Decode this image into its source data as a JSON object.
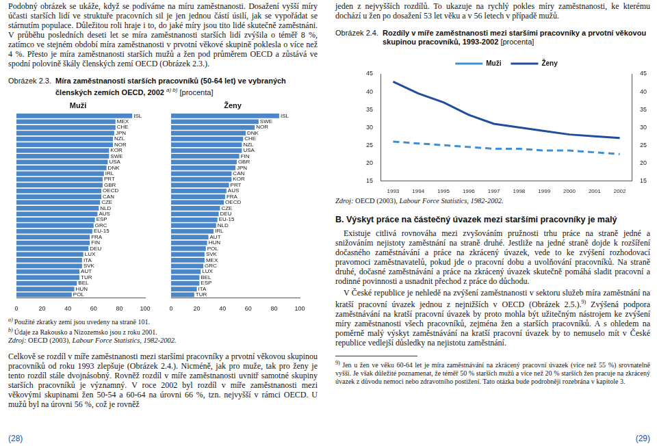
{
  "document": {
    "left": {
      "paragraph_1": "Podobný obrázek se ukáže, když se podíváme na míru zaměstnanosti. Dosažení vyšší míry účasti starších lidí ve struktuře pracovních sil je jen jednou částí úsilí, jak se vypořádat se stárnutím populace. Důležitou roli hraje i to, do jaké míry jsou tito lidé skutečně zaměstnáni. V průběhu posledních deseti let se míra zaměstnanosti starších lidí zvýšila o téměř 8 %, zatímco ve stejném období míra zaměstnanosti v prvotní věkové skupině poklesla o více než 4 %. Přesto je míra zaměstnanosti starších mužů a žen pod průměrem OECD a zůstává ve spodní polovině škály členských zemí OECD (Obrázek 2.3.).",
      "figure": {
        "label": "Obrázek 2.3.",
        "title": "Míra zaměstnanosti starších pracovníků (50-64 let) ve vybraných členských zemích OECD, 2002",
        "title_note": "a) b)",
        "unit": "[procenta]"
      },
      "notes": [
        {
          "mark": "a)",
          "text": "Použité zkratky zemí jsou uvedeny na straně 101."
        },
        {
          "mark": "b)",
          "text": "Údaje za Rakousko a Nizozemsko jsou z roku 2001."
        }
      ],
      "source": {
        "label": "Zdroj:",
        "text": "OECD (2003),",
        "italic": "Labour Force Statistics, 1982-2002."
      },
      "paragraph_2": "Celkově se rozdíl v míře zaměstnanosti mezi staršími pracovníky a prvotní věkovou skupinou pracovníků od roku 1993 zlepšuje (Obrázek 2.4.). Nicméně, jak pro muže, tak pro ženy je tento rozdíl stále dvojnásobný. Rovněž rozdíl v míře zaměstnanosti uvnitř samotné skupiny starších pracovníků je významný. V roce 2002 byl rozdíl v míře zaměstnanosti mezi věkovými skupinami žen 50-54 a 60-64 na úrovni 66 %, tzn. nejvyšší v rámci OECD. U mužů byl na úrovni 56 %, což je rovněž",
      "page_number": "(28)"
    },
    "right": {
      "paragraph_1": "jeden z nejvyšších rozdílů. To ukazuje na rychlý pokles míry zaměstnanosti, ke kterému dochází u žen po dosažení 53 let věku a v 56 letech v případě mužů.",
      "figure": {
        "label": "Obrázek 2.4.",
        "title": "Rozdíly v míře zaměstnanosti mezi staršími pracovníky a prvotní věkovou skupinou pracovníků, 1993-2002",
        "unit": "[procenta]"
      },
      "source": {
        "label": "Zdroj:",
        "text": "OECD (2003),",
        "italic": "Labour Force Statistics, 1982-2002."
      },
      "heading": "B. Výskyt práce na částečný úvazek mezi staršími pracovníky je malý",
      "paragraphs": [
        {
          "text": "Existuje citlivá rovnováha mezi zvyšováním pružnosti trhu práce na straně jedné a snižováním nejistoty zaměstnání na straně druhé. Jestliže na jedné straně dojde k rozšíření dočasného zaměstnávání a práce na zkrácený úvazek, vede to ke zvýšení rozhodovací pravomoci zaměstnavatelů, pokud jde o pracovní dobu a uvolňování pracovníků. Na straně druhé, dočasné zaměstnávání a práce na zkrácený úvazek skutečně pomáhá sladit pracovní a rodinné povinnosti a usnadnit přechod z práce do důchodu."
        },
        {
          "text": "V České republice je nehledě na zvýšení zaměstnanosti v sektoru služeb míra zaměstnání na kratší pracovní úvazek jednou z nejnižších v OECD (Obrázek 2.5.).",
          "ref": "9)",
          "after": " Zvýšená podpora zaměstnávání na kratší pracovní úvazek by proto mohla být užitečným nástrojem ke zvýšení míry zaměstnanosti všech pracovníků, zejména žen a starších pracovníků. A s ohledem na poměrně malý výskyt zaměstnávání na kratší pracovní úvazek by to nemuselo mít v České republice vedlejší důsledky na nejistotu zaměstnání."
        }
      ],
      "footnote": {
        "mark": "9)",
        "text": "Jen u žen ve věku 60-64 let je míra zaměstnávání na zkrácený pracovní úvazek (více než 55 %) srovnatelně vyšší. Je však důležité poznamenat, že téměř 50 % starších mužů a více než 20 % starších žen pracuje na zkrácený úvazek z důvodu nemoci nebo zdravotního postižení. Tato otázka bude podrobněji rozebrána v kapitole 3."
      },
      "page_number": "(29)"
    }
  },
  "chart_data": [
    {
      "type": "bar",
      "orientation": "horizontal",
      "title": "Muži",
      "categories": [
        "ISL",
        "MEX",
        "CHE",
        "JPN",
        "NZL",
        "NOR",
        "KOR",
        "SWE",
        "USA",
        "DNK",
        "IRL",
        "PRT",
        "GBR",
        "OECD",
        "CAN",
        "CZE",
        "NLD",
        "AUS",
        "ESP",
        "GRC",
        "EU-15",
        "FRA",
        "FIN",
        "DEU",
        "LUX",
        "ITA",
        "SVK",
        "AUT",
        "TUR",
        "BEL",
        "HUN",
        "POL"
      ],
      "values": [
        90,
        77,
        77,
        76,
        75,
        75,
        72,
        72,
        71,
        70,
        68,
        67,
        67,
        66,
        66,
        65,
        64,
        63,
        61,
        60,
        59,
        57,
        57,
        56,
        52,
        51,
        51,
        49,
        49,
        47,
        45,
        43
      ],
      "color": "#4a86c8",
      "xlim": [
        0,
        100
      ],
      "xticks": [
        0,
        20,
        40,
        60,
        80,
        100
      ],
      "grid": false,
      "tick_labels": "x"
    },
    {
      "type": "bar",
      "orientation": "horizontal",
      "title": "Ženy",
      "categories": [
        "ISL",
        "SWE",
        "NOR",
        "DNK",
        "CHE",
        "NZL",
        "USA",
        "FIN",
        "GBR",
        "JPN",
        "CAN",
        "KOR",
        "PRT",
        "AUS",
        "FRA",
        "OECD",
        "CZE",
        "DEU",
        "EU-15",
        "NLD",
        "IRL",
        "AUT",
        "HUN",
        "POL",
        "SVK",
        "MEX",
        "GRC",
        "LUX",
        "BEL",
        "ESP",
        "ITA",
        "TUR"
      ],
      "values": [
        84,
        68,
        65,
        58,
        56,
        55,
        55,
        53,
        51,
        50,
        47,
        47,
        45,
        43,
        42,
        41,
        38,
        37,
        36,
        35,
        33,
        29,
        28,
        27,
        26,
        26,
        25,
        23,
        22,
        22,
        20,
        18
      ],
      "color": "#4a86c8",
      "xlim": [
        0,
        100
      ],
      "xticks": [
        0,
        20,
        40,
        60,
        80,
        100
      ],
      "grid": false,
      "tick_labels": "x"
    },
    {
      "type": "line",
      "categories": [
        "1993",
        "1994",
        "1995",
        "1996",
        "1997",
        "1998",
        "1999",
        "2000",
        "2001",
        "2002"
      ],
      "series": [
        {
          "name": "Muži",
          "color": "#3f8fd8",
          "line_style": "dashed",
          "values": [
            26,
            25.5,
            25,
            24.5,
            24,
            24,
            23.5,
            23.5,
            23,
            22.5
          ]
        },
        {
          "name": "Ženy",
          "color": "#1f4e9c",
          "line_style": "solid",
          "values": [
            42.8,
            39.5,
            37,
            33.5,
            31,
            30,
            29,
            28,
            27.5,
            27
          ]
        }
      ],
      "ylim": [
        15,
        45
      ],
      "yticks": [
        15,
        20,
        25,
        30,
        35,
        40,
        45
      ],
      "y2lim": [
        15,
        45
      ],
      "y2ticks": [
        15,
        20,
        25,
        30,
        35,
        40,
        45
      ],
      "legend": "top",
      "grid": false
    }
  ]
}
